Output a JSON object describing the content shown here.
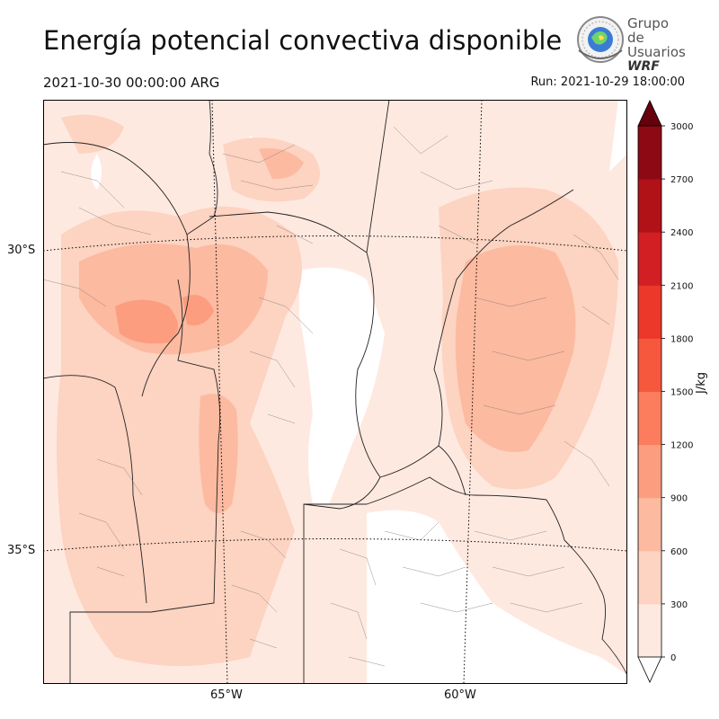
{
  "header": {
    "title": "Energía potencial convectiva disponible",
    "valid_time": "2021-10-30 00:00:00 ARG",
    "run_time": "Run: 2021-10-29 18:00:00"
  },
  "logo": {
    "line1": "Grupo de",
    "line2": "Usuarios",
    "line3": "WRF",
    "icon": "globe-seal-icon"
  },
  "map": {
    "parallels": [
      {
        "label": "30°S"
      },
      {
        "label": "35°S"
      }
    ],
    "meridians": [
      {
        "label": "65°W"
      },
      {
        "label": "60°W"
      }
    ]
  },
  "colorbar": {
    "unit": "J/kg",
    "levels": [
      0,
      300,
      600,
      900,
      1200,
      1500,
      1800,
      2100,
      2400,
      2700,
      3000
    ],
    "tick_labels": [
      "0",
      "300",
      "600",
      "900",
      "1200",
      "1500",
      "1800",
      "2100",
      "2400",
      "2700",
      "3000"
    ],
    "colors": [
      "#fee9e0",
      "#fdd3c1",
      "#fcbaa0",
      "#fc9d7f",
      "#fb7d5d",
      "#f6583e",
      "#ec382b",
      "#d11f24",
      "#b11218",
      "#8d0a14",
      "#6a0010"
    ],
    "extend_over_color": "#67000d"
  }
}
